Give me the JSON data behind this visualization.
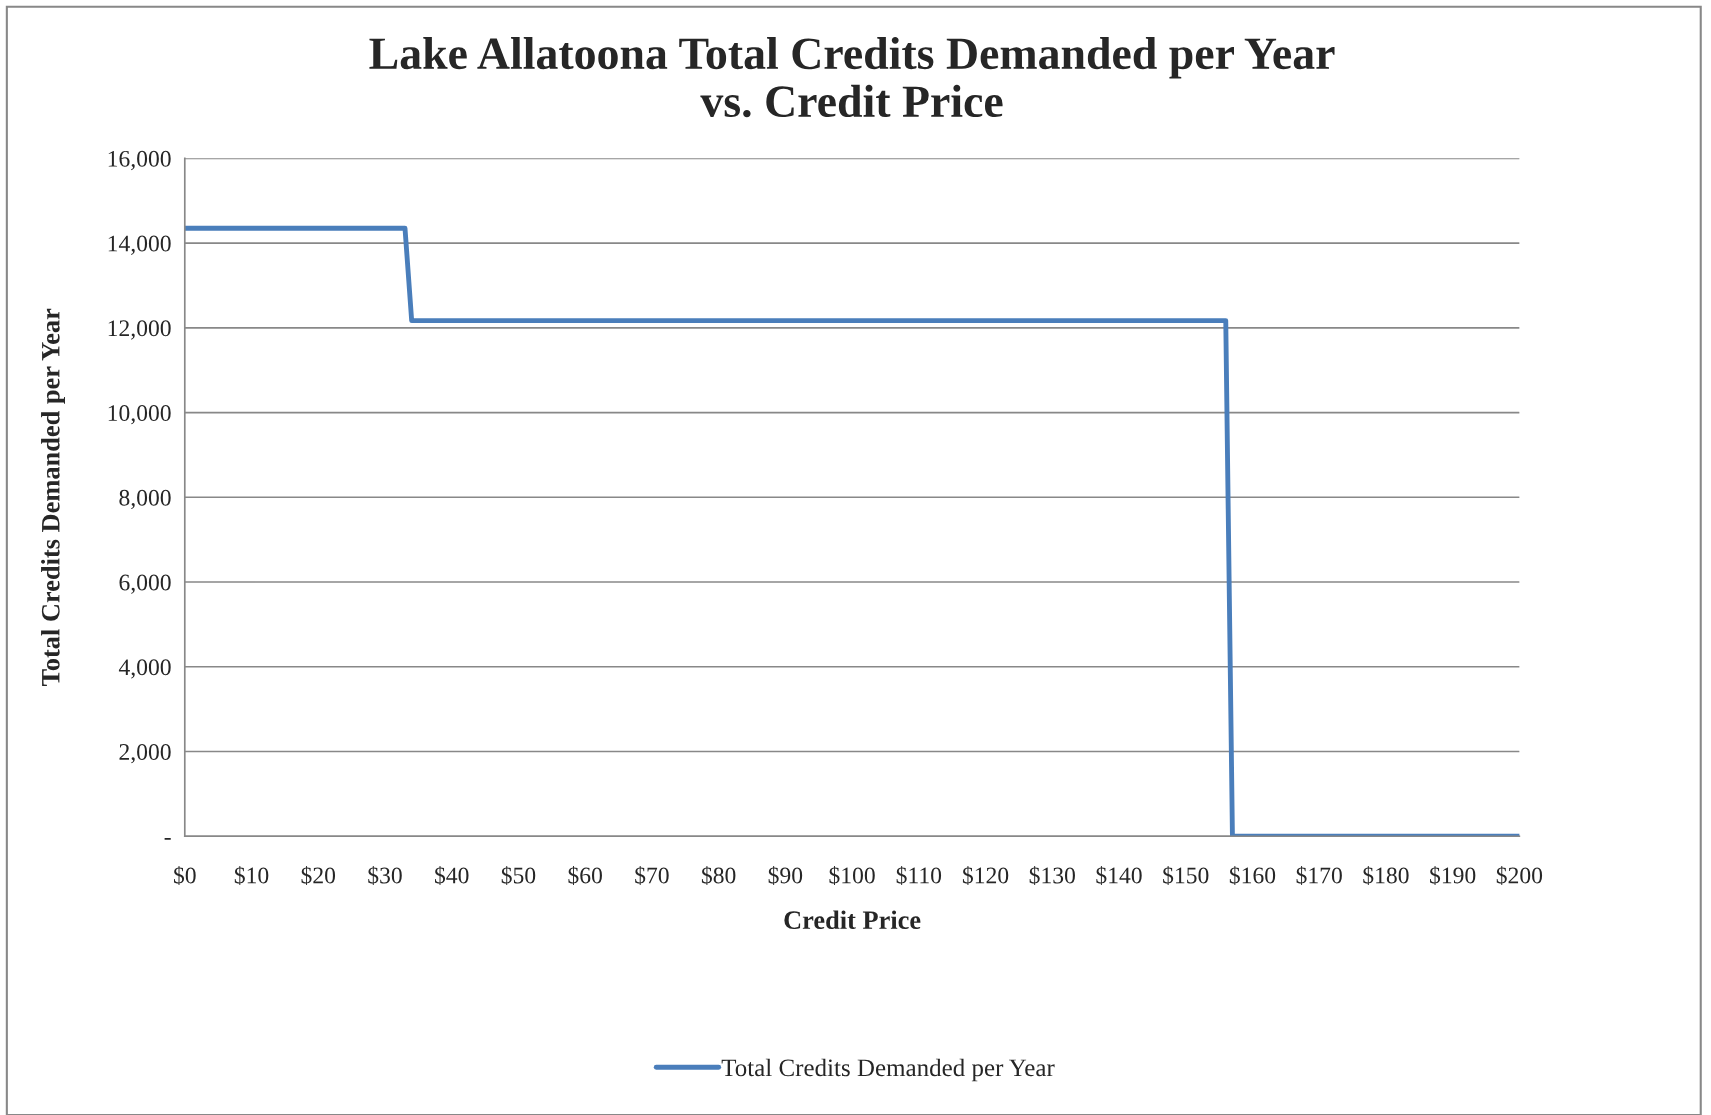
{
  "chart_data": {
    "type": "line",
    "title": "Lake Allatoona Total Credits Demanded per Year\nvs. Credit Price",
    "xlabel": "Credit Price",
    "ylabel": "Total Credits Demanded per Year",
    "series": [
      {
        "name": "Total Credits Demanded per Year",
        "color": "#4a7ebb",
        "x": [
          0,
          33,
          34,
          156,
          157,
          200
        ],
        "values": [
          14350,
          14350,
          12170,
          12170,
          0,
          0
        ]
      }
    ],
    "xlim": [
      0,
      200
    ],
    "xticks": [
      {
        "value": 0,
        "label": "$0"
      },
      {
        "value": 10,
        "label": "$10"
      },
      {
        "value": 20,
        "label": "$20"
      },
      {
        "value": 30,
        "label": "$30"
      },
      {
        "value": 40,
        "label": "$40"
      },
      {
        "value": 50,
        "label": "$50"
      },
      {
        "value": 60,
        "label": "$60"
      },
      {
        "value": 70,
        "label": "$70"
      },
      {
        "value": 80,
        "label": "$80"
      },
      {
        "value": 90,
        "label": "$90"
      },
      {
        "value": 100,
        "label": "$100"
      },
      {
        "value": 110,
        "label": "$110"
      },
      {
        "value": 120,
        "label": "$120"
      },
      {
        "value": 130,
        "label": "$130"
      },
      {
        "value": 140,
        "label": "$140"
      },
      {
        "value": 150,
        "label": "$150"
      },
      {
        "value": 160,
        "label": "$160"
      },
      {
        "value": 170,
        "label": "$170"
      },
      {
        "value": 180,
        "label": "$180"
      },
      {
        "value": 190,
        "label": "$190"
      },
      {
        "value": 200,
        "label": "$200"
      }
    ],
    "ylim": [
      0,
      16000
    ],
    "yticks": [
      {
        "value": 0,
        "label": "-"
      },
      {
        "value": 2000,
        "label": "2,000"
      },
      {
        "value": 4000,
        "label": "4,000"
      },
      {
        "value": 6000,
        "label": "6,000"
      },
      {
        "value": 8000,
        "label": "8,000"
      },
      {
        "value": 10000,
        "label": "10,000"
      },
      {
        "value": 12000,
        "label": "12,000"
      },
      {
        "value": 14000,
        "label": "14,000"
      },
      {
        "value": 16000,
        "label": "16,000"
      }
    ],
    "grid": "y",
    "legend": "bottom",
    "line_style": "solid",
    "marker": "none"
  }
}
